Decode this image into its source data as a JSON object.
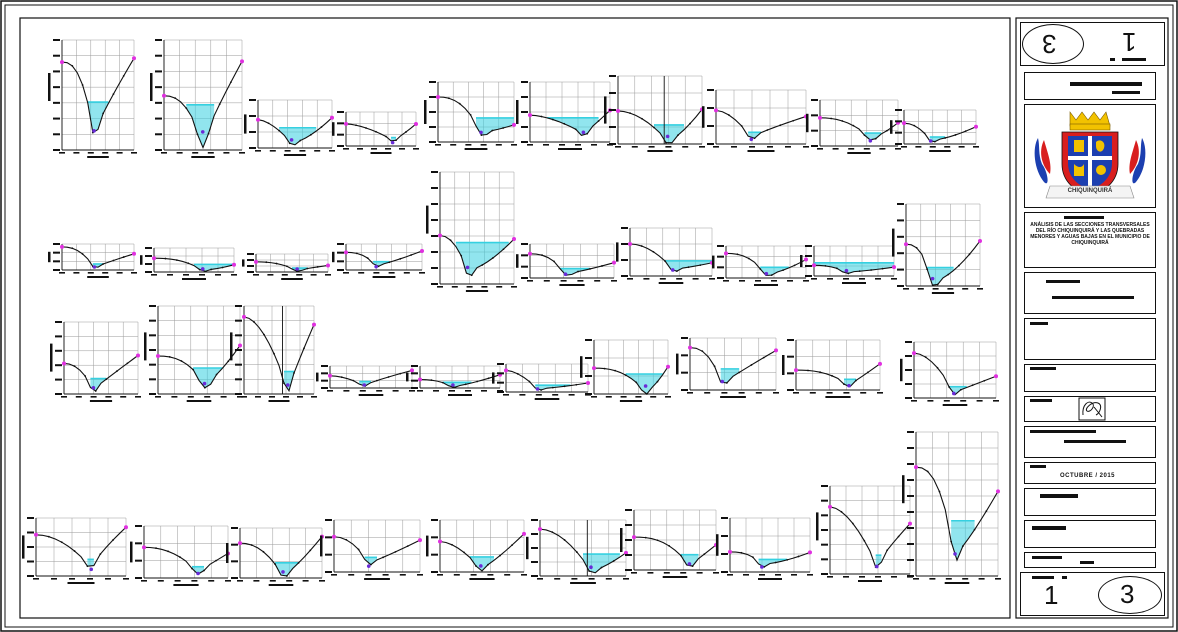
{
  "title_block": {
    "top_sheet_number": "1",
    "top_circle_number": "3",
    "bottom_sheet_number": "1",
    "bottom_circle_number": "3",
    "emblem_ribbon_text": "CHIQUINQUIRÁ",
    "project_description": "ANÁLISIS DE LAS SECCIONES TRANSVERSALES DEL RÍO CHIQUINQUIRÁ Y LAS QUEBRADAS MENORES Y AGUAS BAJAS EN EL MUNICIPIO DE CHIQUINQUIRÁ",
    "date": "OCTUBRE / 2015"
  },
  "colors": {
    "line": "#111111",
    "grid": "#9a9a9a",
    "water": "#36d0e0",
    "endpoint": "#e030e0",
    "emblem_blue": "#1c3fb0",
    "emblem_red": "#d81e1e",
    "emblem_gold": "#f2c200"
  },
  "icons": {
    "emblem": "municipal-coat-of-arms-icon",
    "stamp": "signature-stamp-icon"
  }
}
